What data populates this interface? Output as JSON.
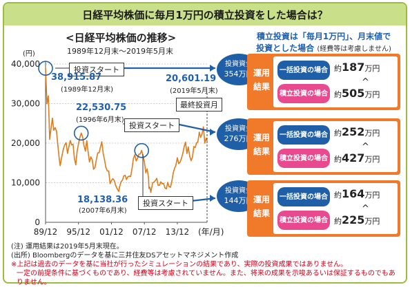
{
  "header": {
    "title": "日経平均株価に毎月1万円の積立投資をした場合は？"
  },
  "chart_header": {
    "title": "<日経平均株価の推移>",
    "subtitle": "1989年12月末～2019年5月末",
    "y_unit": "(円)",
    "x_unit": "(年/月)"
  },
  "chart_data": {
    "type": "line",
    "title": "<日経平均株価の推移>",
    "ylim": [
      0,
      40000
    ],
    "yticks": [
      "0",
      "10,000",
      "20,000",
      "30,000",
      "40,000"
    ],
    "xticks": [
      "89/12",
      "95/12",
      "01/12",
      "07/12",
      "13/12"
    ],
    "grid": true,
    "series": [
      {
        "values": [
          [
            "1989-12",
            38916
          ],
          [
            "1990-03",
            29980
          ],
          [
            "1990-06",
            31940
          ],
          [
            "1990-09",
            20984
          ],
          [
            "1990-12",
            23849
          ],
          [
            "1991-03",
            26292
          ],
          [
            "1991-06",
            23291
          ],
          [
            "1991-09",
            23916
          ],
          [
            "1991-12",
            22984
          ],
          [
            "1992-03",
            19346
          ],
          [
            "1992-06",
            15952
          ],
          [
            "1992-08",
            14309
          ],
          [
            "1992-12",
            16925
          ],
          [
            "1993-03",
            18591
          ],
          [
            "1993-06",
            19591
          ],
          [
            "1993-09",
            20106
          ],
          [
            "1993-12",
            17417
          ],
          [
            "1994-03",
            19112
          ],
          [
            "1994-06",
            20644
          ],
          [
            "1994-09",
            19564
          ],
          [
            "1994-12",
            19723
          ],
          [
            "1995-03",
            16140
          ],
          [
            "1995-06",
            14517
          ],
          [
            "1995-09",
            17913
          ],
          [
            "1995-12",
            19868
          ],
          [
            "1996-03",
            21407
          ],
          [
            "1996-06",
            22531
          ],
          [
            "1996-09",
            21556
          ],
          [
            "1996-12",
            19361
          ],
          [
            "1997-03",
            18003
          ],
          [
            "1997-06",
            20605
          ],
          [
            "1997-09",
            17888
          ],
          [
            "1997-12",
            15259
          ],
          [
            "1998-03",
            16527
          ],
          [
            "1998-06",
            15830
          ],
          [
            "1998-09",
            13406
          ],
          [
            "1998-12",
            13842
          ],
          [
            "1999-03",
            15837
          ],
          [
            "1999-06",
            17530
          ],
          [
            "1999-09",
            17605
          ],
          [
            "1999-12",
            18934
          ],
          [
            "2000-03",
            20337
          ],
          [
            "2000-06",
            17411
          ],
          [
            "2000-09",
            15747
          ],
          [
            "2000-12",
            13786
          ],
          [
            "2001-03",
            12999
          ],
          [
            "2001-06",
            12969
          ],
          [
            "2001-09",
            9775
          ],
          [
            "2001-12",
            10543
          ],
          [
            "2002-03",
            11025
          ],
          [
            "2002-06",
            10622
          ],
          [
            "2002-09",
            9383
          ],
          [
            "2002-12",
            8579
          ],
          [
            "2003-03",
            7973
          ],
          [
            "2003-04",
            7831
          ],
          [
            "2003-06",
            9083
          ],
          [
            "2003-09",
            10219
          ],
          [
            "2003-12",
            10677
          ],
          [
            "2004-03",
            11715
          ],
          [
            "2004-06",
            11858
          ],
          [
            "2004-09",
            10824
          ],
          [
            "2004-12",
            11489
          ],
          [
            "2005-03",
            11669
          ],
          [
            "2005-06",
            11584
          ],
          [
            "2005-09",
            13574
          ],
          [
            "2005-12",
            16111
          ],
          [
            "2006-03",
            17060
          ],
          [
            "2006-06",
            15505
          ],
          [
            "2006-09",
            16128
          ],
          [
            "2006-12",
            17226
          ],
          [
            "2007-03",
            17288
          ],
          [
            "2007-06",
            18138
          ],
          [
            "2007-09",
            16786
          ],
          [
            "2007-12",
            15308
          ],
          [
            "2008-03",
            12526
          ],
          [
            "2008-06",
            13481
          ],
          [
            "2008-09",
            11260
          ],
          [
            "2008-10",
            8577
          ],
          [
            "2008-12",
            8860
          ],
          [
            "2009-02",
            7568
          ],
          [
            "2009-06",
            9958
          ],
          [
            "2009-09",
            10133
          ],
          [
            "2009-12",
            10546
          ],
          [
            "2010-03",
            11090
          ],
          [
            "2010-06",
            9383
          ],
          [
            "2010-09",
            9369
          ],
          [
            "2010-12",
            10229
          ],
          [
            "2011-03",
            9755
          ],
          [
            "2011-06",
            9816
          ],
          [
            "2011-09",
            8700
          ],
          [
            "2011-12",
            8455
          ],
          [
            "2012-03",
            10084
          ],
          [
            "2012-06",
            9007
          ],
          [
            "2012-09",
            8870
          ],
          [
            "2012-12",
            10395
          ],
          [
            "2013-03",
            12398
          ],
          [
            "2013-06",
            13677
          ],
          [
            "2013-09",
            14456
          ],
          [
            "2013-12",
            16291
          ],
          [
            "2014-03",
            14828
          ],
          [
            "2014-06",
            15162
          ],
          [
            "2014-09",
            16174
          ],
          [
            "2014-12",
            17451
          ],
          [
            "2015-03",
            19207
          ],
          [
            "2015-06",
            20236
          ],
          [
            "2015-09",
            17388
          ],
          [
            "2015-12",
            19034
          ],
          [
            "2016-03",
            16759
          ],
          [
            "2016-06",
            15576
          ],
          [
            "2016-09",
            16450
          ],
          [
            "2016-12",
            19114
          ],
          [
            "2017-03",
            18909
          ],
          [
            "2017-06",
            20033
          ],
          [
            "2017-09",
            20356
          ],
          [
            "2017-12",
            22765
          ],
          [
            "2018-03",
            21454
          ],
          [
            "2018-06",
            22305
          ],
          [
            "2018-09",
            24120
          ],
          [
            "2018-12",
            20015
          ],
          [
            "2019-03",
            21206
          ],
          [
            "2019-05",
            20601
          ]
        ]
      }
    ]
  },
  "annotations": {
    "start_1989": {
      "label": "投資スタート",
      "value": "38,915.87",
      "date": "(1989年12月末)"
    },
    "start_1996": {
      "label": "投資スタート",
      "value": "22,530.75",
      "date": "(1996年6月末)"
    },
    "start_2007": {
      "label": "投資スタート",
      "value": "18,138.36",
      "date": "(2007年6月末)"
    },
    "end_2019": {
      "label": "最終投資月",
      "value": "20,601.19",
      "date": "(2019年5月末)"
    }
  },
  "right_panel": {
    "heading_line1": "積立投資は「毎月1万円」、月末値で",
    "heading_line2": "投資とした場合",
    "heading_note": "(経費等は考慮しません)",
    "scenarios": [
      {
        "badge_label": "投資資金",
        "badge_value": "354万円",
        "run_label": "運用結果",
        "lump_label": "一括投資の場合",
        "accum_label": "積立投資の場合",
        "lump_prefix": "約",
        "lump_value": "187",
        "lump_unit": "万円",
        "accum_prefix": "約",
        "accum_value": "505",
        "accum_unit": "万円",
        "comparator": "^"
      },
      {
        "badge_label": "投資資金",
        "badge_value": "276万円",
        "run_label": "運用結果",
        "lump_label": "一括投資の場合",
        "accum_label": "積立投資の場合",
        "lump_prefix": "約",
        "lump_value": "252",
        "lump_unit": "万円",
        "accum_prefix": "約",
        "accum_value": "427",
        "accum_unit": "万円",
        "comparator": "^"
      },
      {
        "badge_label": "投資資金",
        "badge_value": "144万円",
        "run_label": "運用結果",
        "lump_label": "一括投資の場合",
        "accum_label": "積立投資の場合",
        "lump_prefix": "約",
        "lump_value": "164",
        "lump_unit": "万円",
        "accum_prefix": "約",
        "accum_value": "225",
        "accum_unit": "万円",
        "comparator": "^"
      }
    ]
  },
  "footer": {
    "note1": "(注) 運用結果は2019年5月末現在。",
    "note2": "(出所) Bloombergのデータを基に三井住友DSアセットマネジメント作成",
    "note3": "※上記は過去のデータを基に当社が行ったシミュレーションの結果であり、実際の投資成果ではありません。",
    "note4": "一定の前提条件に基づくものであり、経費等は考慮されていません。また、将来の成果を示唆あるいは保証するものでもありません。"
  },
  "colors": {
    "line": "#e07b1a",
    "accent_blue": "#1f5fa8",
    "orange": "#f07a2a",
    "pink": "#e8498f",
    "header_bg": "#c9df8a"
  }
}
